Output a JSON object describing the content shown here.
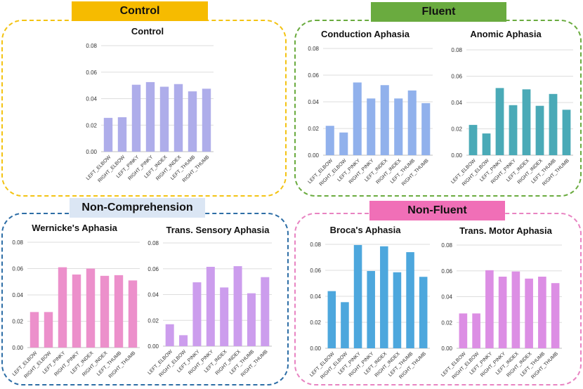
{
  "groups": {
    "control": {
      "label": "Control",
      "label_color": "#f6bb00",
      "border_color": "#f3c313"
    },
    "fluent": {
      "label": "Fluent",
      "label_color": "#6aab3f",
      "border_color": "#6aab3f"
    },
    "noncomp": {
      "label": "Non-Comprehension",
      "label_color": "#dbe6f4",
      "border_color": "#2e6ea6"
    },
    "nonfluent": {
      "label": "Non-Fluent",
      "label_color": "#f06fb7",
      "border_color": "#e884c2"
    }
  },
  "chart_data": [
    {
      "id": "control",
      "type": "bar",
      "title": "Control",
      "categories": [
        "LEFT_ELBOW",
        "RIGHT_ELBOW",
        "LEFT_PINKY",
        "RIGHT_PINKY",
        "LEFT_INDEX",
        "RIGHT_INDEX",
        "LEFT_THUMB",
        "RIGHT_THUMB"
      ],
      "values": [
        0.0255,
        0.026,
        0.0505,
        0.0525,
        0.049,
        0.051,
        0.0455,
        0.0475
      ],
      "ylim": [
        0,
        0.08
      ],
      "yticks": [
        "0.00",
        "0.02",
        "0.04",
        "0.06",
        "0.08"
      ],
      "color": "#aeadea",
      "grid": true
    },
    {
      "id": "conduction",
      "type": "bar",
      "title": "Conduction Aphasia",
      "categories": [
        "LEFT_ELBOW",
        "RIGHT_ELBOW",
        "LEFT_PINKY",
        "RIGHT_PINKY",
        "LEFT_INDEX",
        "RIGHT_INDEX",
        "LEFT_THUMB",
        "RIGHT_THUMB"
      ],
      "values": [
        0.022,
        0.017,
        0.0545,
        0.0425,
        0.0525,
        0.0425,
        0.0485,
        0.039
      ],
      "ylim": [
        0,
        0.08
      ],
      "yticks": [
        "0.00",
        "0.02",
        "0.04",
        "0.06",
        "0.08"
      ],
      "color": "#91b1ec",
      "grid": true
    },
    {
      "id": "anomic",
      "type": "bar",
      "title": "Anomic Aphasia",
      "categories": [
        "LEFT_ELBOW",
        "RIGHT_ELBOW",
        "LEFT_PINKY",
        "RIGHT_PINKY",
        "LEFT_INDEX",
        "RIGHT_INDEX",
        "LEFT_THUMB",
        "RIGHT_THUMB"
      ],
      "values": [
        0.023,
        0.0165,
        0.051,
        0.038,
        0.05,
        0.0375,
        0.0465,
        0.0345
      ],
      "ylim": [
        0,
        0.08
      ],
      "yticks": [
        "0.00",
        "0.02",
        "0.04",
        "0.06",
        "0.08"
      ],
      "color": "#4aaab7",
      "grid": true
    },
    {
      "id": "wernicke",
      "type": "bar",
      "title": "Wernicke's Aphasia",
      "categories": [
        "LEFT_ELBOW",
        "RIGHT_ELBOW",
        "LEFT_PINKY",
        "RIGHT_PINKY",
        "LEFT_INDEX",
        "RIGHT_INDEX",
        "LEFT_THUMB",
        "RIGHT_THUMB"
      ],
      "values": [
        0.027,
        0.027,
        0.061,
        0.0555,
        0.06,
        0.0545,
        0.055,
        0.051
      ],
      "ylim": [
        0,
        0.08
      ],
      "yticks": [
        "0.00",
        "0.02",
        "0.04",
        "0.06",
        "0.08"
      ],
      "color": "#ec90cb",
      "grid": true
    },
    {
      "id": "transsensory",
      "type": "bar",
      "title": "Trans. Sensory Aphasia",
      "categories": [
        "LEFT_ELBOW",
        "RIGHT_ELBOW",
        "LEFT_PINKY",
        "RIGHT_PINKY",
        "LEFT_INDEX",
        "RIGHT_INDEX",
        "LEFT_THUMB",
        "RIGHT_THUMB"
      ],
      "values": [
        0.017,
        0.0085,
        0.0495,
        0.0615,
        0.0455,
        0.062,
        0.041,
        0.0535
      ],
      "ylim": [
        0,
        0.08
      ],
      "yticks": [
        "0.00",
        "0.02",
        "0.04",
        "0.06",
        "0.08"
      ],
      "color": "#cc9ded",
      "grid": true
    },
    {
      "id": "broca",
      "type": "bar",
      "title": "Broca's Aphasia",
      "categories": [
        "LEFT_ELBOW",
        "RIGHT_ELBOW",
        "LEFT_PINKY",
        "RIGHT_PINKY",
        "LEFT_INDEX",
        "RIGHT_INDEX",
        "LEFT_THUMB",
        "RIGHT_THUMB"
      ],
      "values": [
        0.044,
        0.0355,
        0.0795,
        0.0595,
        0.0785,
        0.0585,
        0.074,
        0.055
      ],
      "ylim": [
        0,
        0.08
      ],
      "yticks": [
        "0.00",
        "0.02",
        "0.04",
        "0.06",
        "0.08"
      ],
      "color": "#4da7dd",
      "grid": true
    },
    {
      "id": "transmotor",
      "type": "bar",
      "title": "Trans. Motor Aphasia",
      "categories": [
        "LEFT_ELBOW",
        "RIGHT_ELBOW",
        "LEFT_PINKY",
        "RIGHT_PINKY",
        "LEFT_INDEX",
        "RIGHT_INDEX",
        "LEFT_THUMB",
        "RIGHT_THUMB"
      ],
      "values": [
        0.027,
        0.027,
        0.0605,
        0.0555,
        0.0595,
        0.054,
        0.0555,
        0.0505
      ],
      "ylim": [
        0,
        0.08
      ],
      "yticks": [
        "0.00",
        "0.02",
        "0.04",
        "0.06",
        "0.08"
      ],
      "color": "#dc8ee4",
      "grid": true
    }
  ]
}
